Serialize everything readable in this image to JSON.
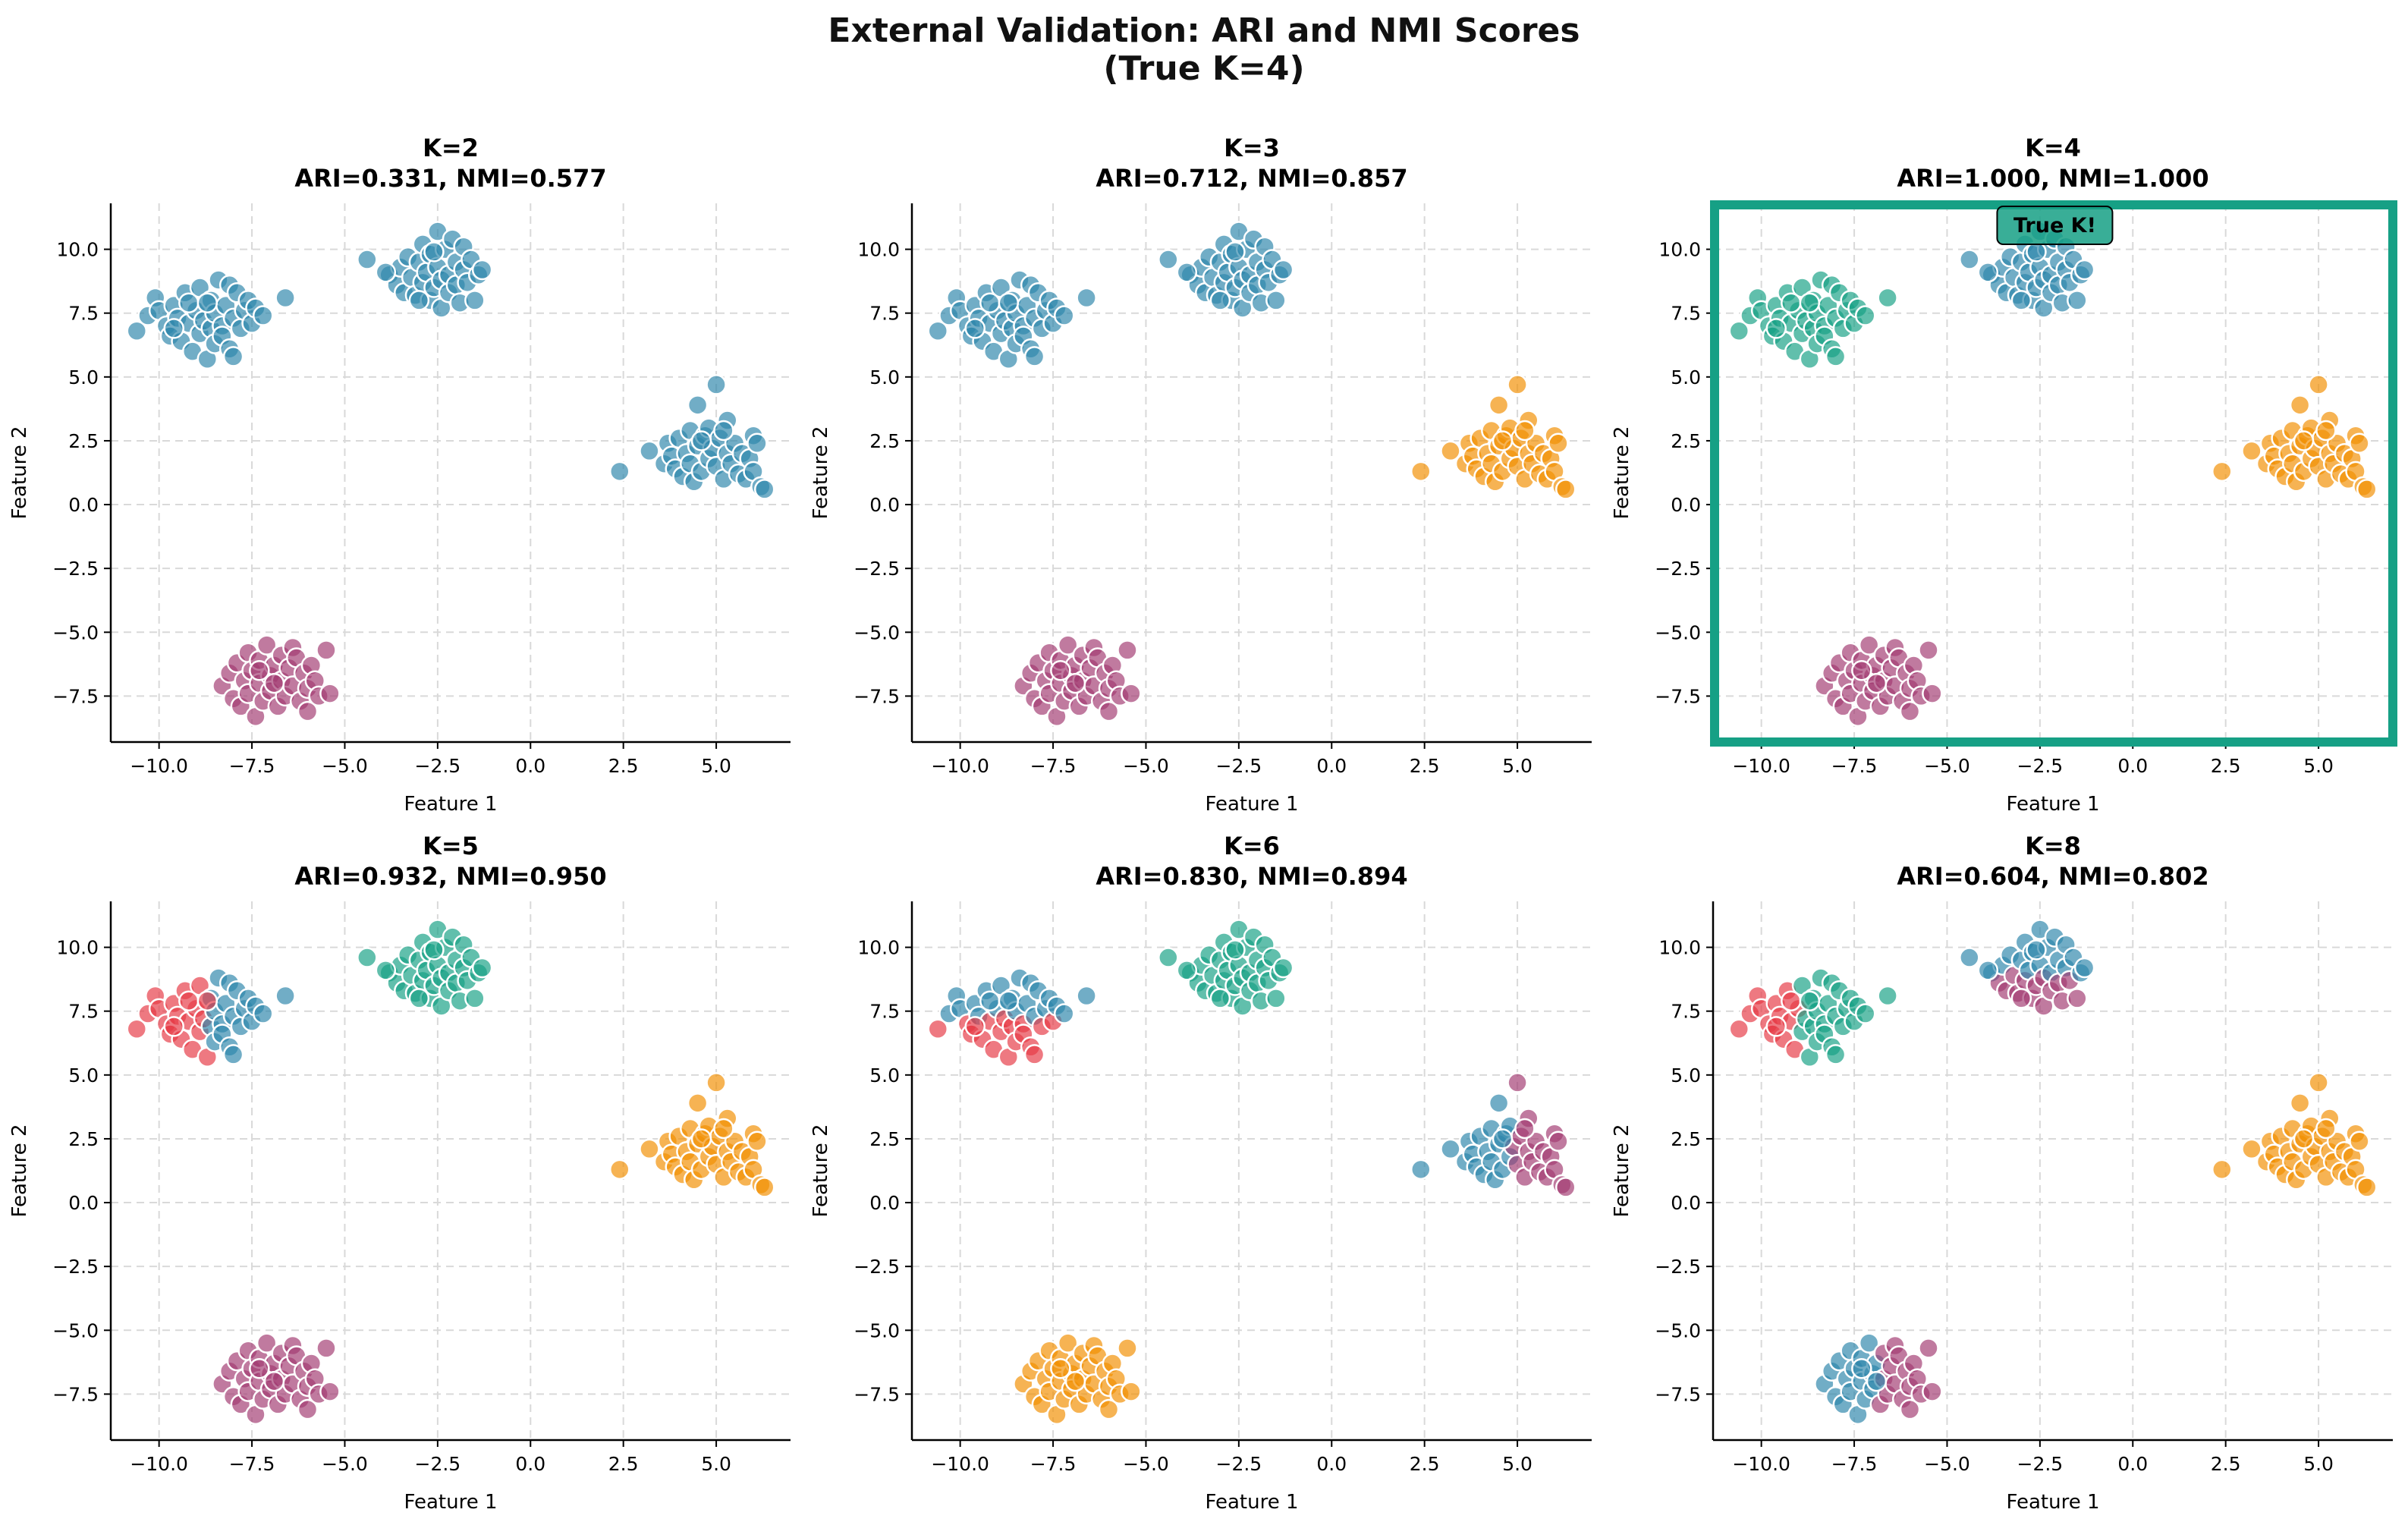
{
  "figure": {
    "title_line1": "External Validation: ARI and NMI Scores",
    "title_line2": "(True K=4)"
  },
  "colors": {
    "blue": "#2e86ab",
    "purple": "#a23b72",
    "orange": "#f18f01",
    "green": "#16a085",
    "red": "#e63946",
    "highlight": "#16a085",
    "axis": "#000000",
    "grid": "#d9d9d9",
    "point_edge": "#ffffff"
  },
  "chart_data": [
    {
      "type": "scatter",
      "title_line1": "K=2",
      "title_line2": "ARI=0.331, NMI=0.577",
      "xlabel": "Feature 1",
      "ylabel": "Feature 2",
      "xlim": [
        -11.3,
        7.0
      ],
      "ylim": [
        -9.3,
        11.8
      ],
      "xticks": [
        "−10.0",
        "−7.5",
        "−5.0",
        "−2.5",
        "0.0",
        "2.5",
        "5.0"
      ],
      "xtick_values": [
        -10,
        -7.5,
        -5,
        -2.5,
        0,
        2.5,
        5
      ],
      "yticks": [
        "−7.5",
        "−5.0",
        "−2.5",
        "0.0",
        "2.5",
        "5.0",
        "7.5",
        "10.0"
      ],
      "ytick_values": [
        -7.5,
        -5,
        -2.5,
        0,
        2.5,
        5,
        7.5,
        10
      ],
      "grid": true,
      "clusters": [
        "blue",
        "blue",
        "purple",
        "blue"
      ],
      "highlight": false
    },
    {
      "type": "scatter",
      "title_line1": "K=3",
      "title_line2": "ARI=0.712, NMI=0.857",
      "xlabel": "Feature 1",
      "ylabel": "Feature 2",
      "xlim": [
        -11.3,
        7.0
      ],
      "ylim": [
        -9.3,
        11.8
      ],
      "xticks": [
        "−10.0",
        "−7.5",
        "−5.0",
        "−2.5",
        "0.0",
        "2.5",
        "5.0"
      ],
      "xtick_values": [
        -10,
        -7.5,
        -5,
        -2.5,
        0,
        2.5,
        5
      ],
      "yticks": [
        "−7.5",
        "−5.0",
        "−2.5",
        "0.0",
        "2.5",
        "5.0",
        "7.5",
        "10.0"
      ],
      "ytick_values": [
        -7.5,
        -5,
        -2.5,
        0,
        2.5,
        5,
        7.5,
        10
      ],
      "grid": true,
      "clusters": [
        "blue",
        "blue",
        "purple",
        "orange"
      ],
      "highlight": false
    },
    {
      "type": "scatter",
      "title_line1": "K=4",
      "title_line2": "ARI=1.000, NMI=1.000",
      "xlabel": "Feature 1",
      "ylabel": "Feature 2",
      "xlim": [
        -11.3,
        7.0
      ],
      "ylim": [
        -9.3,
        11.8
      ],
      "xticks": [
        "−10.0",
        "−7.5",
        "−5.0",
        "−2.5",
        "0.0",
        "2.5",
        "5.0"
      ],
      "xtick_values": [
        -10,
        -7.5,
        -5,
        -2.5,
        0,
        2.5,
        5
      ],
      "yticks": [
        "−7.5",
        "−5.0",
        "−2.5",
        "0.0",
        "2.5",
        "5.0",
        "7.5",
        "10.0"
      ],
      "ytick_values": [
        -7.5,
        -5,
        -2.5,
        0,
        2.5,
        5,
        7.5,
        10
      ],
      "grid": true,
      "clusters": [
        "green",
        "blue",
        "purple",
        "orange"
      ],
      "highlight": true,
      "annotation": "True K!"
    },
    {
      "type": "scatter",
      "title_line1": "K=5",
      "title_line2": "ARI=0.932, NMI=0.950",
      "xlabel": "Feature 1",
      "ylabel": "Feature 2",
      "xlim": [
        -11.3,
        7.0
      ],
      "ylim": [
        -9.3,
        11.8
      ],
      "xticks": [
        "−10.0",
        "−7.5",
        "−5.0",
        "−2.5",
        "0.0",
        "2.5",
        "5.0"
      ],
      "xtick_values": [
        -10,
        -7.5,
        -5,
        -2.5,
        0,
        2.5,
        5
      ],
      "yticks": [
        "−7.5",
        "−5.0",
        "−2.5",
        "0.0",
        "2.5",
        "5.0",
        "7.5",
        "10.0"
      ],
      "ytick_values": [
        -7.5,
        -5,
        -2.5,
        0,
        2.5,
        5,
        7.5,
        10
      ],
      "grid": true,
      "clusters": [
        "split-x:red:blue:-8.6",
        "green",
        "purple",
        "orange"
      ],
      "highlight": false
    },
    {
      "type": "scatter",
      "title_line1": "K=6",
      "title_line2": "ARI=0.830, NMI=0.894",
      "xlabel": "Feature 1",
      "ylabel": "Feature 2",
      "xlim": [
        -11.3,
        7.0
      ],
      "ylim": [
        -9.3,
        11.8
      ],
      "xticks": [
        "−10.0",
        "−7.5",
        "−5.0",
        "−2.5",
        "0.0",
        "2.5",
        "5.0"
      ],
      "xtick_values": [
        -10,
        -7.5,
        -5,
        -2.5,
        0,
        2.5,
        5
      ],
      "yticks": [
        "−7.5",
        "−5.0",
        "−2.5",
        "0.0",
        "2.5",
        "5.0",
        "7.5",
        "10.0"
      ],
      "ytick_values": [
        -7.5,
        -5,
        -2.5,
        0,
        2.5,
        5,
        7.5,
        10
      ],
      "grid": true,
      "clusters": [
        "split-y:red:blue:7.3",
        "green",
        "orange",
        "split-x:blue:purple:4.9"
      ],
      "highlight": false
    },
    {
      "type": "scatter",
      "title_line1": "K=8",
      "title_line2": "ARI=0.604, NMI=0.802",
      "xlabel": "Feature 1",
      "ylabel": "Feature 2",
      "xlim": [
        -11.3,
        7.0
      ],
      "ylim": [
        -9.3,
        11.8
      ],
      "xticks": [
        "−10.0",
        "−7.5",
        "−5.0",
        "−2.5",
        "0.0",
        "2.5",
        "5.0"
      ],
      "xtick_values": [
        -10,
        -7.5,
        -5,
        -2.5,
        0,
        2.5,
        5
      ],
      "yticks": [
        "−7.5",
        "−5.0",
        "−2.5",
        "0.0",
        "2.5",
        "5.0",
        "7.5",
        "10.0"
      ],
      "ytick_values": [
        -7.5,
        -5,
        -2.5,
        0,
        2.5,
        5,
        7.5,
        10
      ],
      "grid": true,
      "clusters": [
        "split-x:red:green:-8.9",
        "split-y:purple:blue:9.0",
        "split-x:blue:purple:-6.8",
        "orange"
      ],
      "highlight": false
    }
  ],
  "cluster_points": {
    "A": [
      [
        -10.6,
        6.8
      ],
      [
        -10.3,
        7.4
      ],
      [
        -10.1,
        8.1
      ],
      [
        -10.0,
        7.6
      ],
      [
        -9.8,
        7.0
      ],
      [
        -9.7,
        6.6
      ],
      [
        -9.6,
        7.8
      ],
      [
        -9.5,
        7.3
      ],
      [
        -9.4,
        6.4
      ],
      [
        -9.3,
        8.3
      ],
      [
        -9.2,
        7.1
      ],
      [
        -9.1,
        6.0
      ],
      [
        -9.0,
        7.6
      ],
      [
        -8.9,
        6.7
      ],
      [
        -8.9,
        8.5
      ],
      [
        -8.8,
        7.2
      ],
      [
        -8.7,
        5.7
      ],
      [
        -8.6,
        6.9
      ],
      [
        -8.6,
        8.0
      ],
      [
        -8.5,
        7.5
      ],
      [
        -8.5,
        6.3
      ],
      [
        -8.4,
        8.8
      ],
      [
        -8.3,
        7.0
      ],
      [
        -8.3,
        6.6
      ],
      [
        -8.2,
        7.8
      ],
      [
        -8.1,
        8.6
      ],
      [
        -8.1,
        6.1
      ],
      [
        -8.0,
        7.3
      ],
      [
        -8.0,
        5.8
      ],
      [
        -7.9,
        8.3
      ],
      [
        -7.8,
        6.9
      ],
      [
        -7.7,
        7.6
      ],
      [
        -7.6,
        8.0
      ],
      [
        -7.5,
        7.1
      ],
      [
        -7.4,
        7.7
      ],
      [
        -7.2,
        7.4
      ],
      [
        -6.6,
        8.1
      ],
      [
        -9.2,
        7.9
      ],
      [
        -8.7,
        7.9
      ],
      [
        -9.6,
        6.9
      ]
    ],
    "B": [
      [
        -4.4,
        9.6
      ],
      [
        -3.8,
        9.0
      ],
      [
        -3.6,
        8.6
      ],
      [
        -3.5,
        9.3
      ],
      [
        -3.4,
        8.3
      ],
      [
        -3.3,
        9.7
      ],
      [
        -3.2,
        8.9
      ],
      [
        -3.1,
        8.2
      ],
      [
        -3.0,
        9.5
      ],
      [
        -2.9,
        10.2
      ],
      [
        -2.9,
        8.7
      ],
      [
        -2.8,
        9.1
      ],
      [
        -2.7,
        8.0
      ],
      [
        -2.7,
        9.8
      ],
      [
        -2.6,
        8.5
      ],
      [
        -2.5,
        10.7
      ],
      [
        -2.5,
        9.3
      ],
      [
        -2.4,
        8.8
      ],
      [
        -2.4,
        7.7
      ],
      [
        -2.3,
        10.0
      ],
      [
        -2.2,
        9.0
      ],
      [
        -2.2,
        8.3
      ],
      [
        -2.1,
        10.4
      ],
      [
        -2.0,
        9.5
      ],
      [
        -2.0,
        8.6
      ],
      [
        -1.9,
        7.9
      ],
      [
        -1.8,
        9.2
      ],
      [
        -1.8,
        10.1
      ],
      [
        -1.7,
        8.7
      ],
      [
        -1.6,
        9.6
      ],
      [
        -1.5,
        8.0
      ],
      [
        -1.4,
        9.0
      ],
      [
        -1.3,
        9.2
      ],
      [
        -3.9,
        9.1
      ],
      [
        -2.6,
        9.9
      ],
      [
        -3.0,
        8.0
      ]
    ],
    "C": [
      [
        -8.3,
        -7.1
      ],
      [
        -8.1,
        -6.6
      ],
      [
        -8.0,
        -7.6
      ],
      [
        -7.9,
        -6.2
      ],
      [
        -7.8,
        -7.9
      ],
      [
        -7.7,
        -6.9
      ],
      [
        -7.6,
        -7.4
      ],
      [
        -7.6,
        -5.8
      ],
      [
        -7.5,
        -6.5
      ],
      [
        -7.4,
        -8.3
      ],
      [
        -7.3,
        -7.0
      ],
      [
        -7.3,
        -6.1
      ],
      [
        -7.2,
        -7.7
      ],
      [
        -7.1,
        -5.5
      ],
      [
        -7.0,
        -6.7
      ],
      [
        -7.0,
        -7.3
      ],
      [
        -6.9,
        -6.3
      ],
      [
        -6.8,
        -7.9
      ],
      [
        -6.7,
        -5.9
      ],
      [
        -6.7,
        -6.9
      ],
      [
        -6.6,
        -7.5
      ],
      [
        -6.5,
        -6.4
      ],
      [
        -6.4,
        -5.6
      ],
      [
        -6.4,
        -7.1
      ],
      [
        -6.3,
        -6.0
      ],
      [
        -6.2,
        -7.7
      ],
      [
        -6.1,
        -6.6
      ],
      [
        -6.0,
        -7.2
      ],
      [
        -6.0,
        -8.1
      ],
      [
        -5.9,
        -6.3
      ],
      [
        -5.8,
        -6.9
      ],
      [
        -5.7,
        -7.5
      ],
      [
        -5.5,
        -5.7
      ],
      [
        -5.4,
        -7.4
      ],
      [
        -7.3,
        -6.5
      ],
      [
        -6.9,
        -7.0
      ]
    ],
    "D": [
      [
        2.4,
        1.3
      ],
      [
        3.2,
        2.1
      ],
      [
        3.6,
        1.6
      ],
      [
        3.7,
        2.4
      ],
      [
        3.8,
        1.9
      ],
      [
        3.9,
        1.4
      ],
      [
        4.0,
        2.6
      ],
      [
        4.1,
        1.1
      ],
      [
        4.2,
        2.0
      ],
      [
        4.3,
        2.9
      ],
      [
        4.3,
        1.6
      ],
      [
        4.4,
        0.9
      ],
      [
        4.5,
        2.3
      ],
      [
        4.5,
        3.9
      ],
      [
        4.6,
        1.3
      ],
      [
        4.7,
        2.7
      ],
      [
        4.8,
        1.8
      ],
      [
        4.8,
        3.0
      ],
      [
        4.9,
        2.2
      ],
      [
        5.0,
        4.7
      ],
      [
        5.0,
        1.5
      ],
      [
        5.1,
        2.6
      ],
      [
        5.2,
        1.0
      ],
      [
        5.3,
        2.0
      ],
      [
        5.3,
        3.3
      ],
      [
        5.4,
        1.6
      ],
      [
        5.5,
        2.4
      ],
      [
        5.6,
        1.2
      ],
      [
        5.7,
        2.0
      ],
      [
        5.8,
        1.0
      ],
      [
        5.9,
        1.8
      ],
      [
        6.0,
        2.7
      ],
      [
        6.0,
        1.3
      ],
      [
        6.1,
        2.4
      ],
      [
        6.2,
        0.7
      ],
      [
        6.3,
        0.6
      ],
      [
        4.6,
        2.5
      ],
      [
        5.2,
        2.9
      ]
    ]
  }
}
